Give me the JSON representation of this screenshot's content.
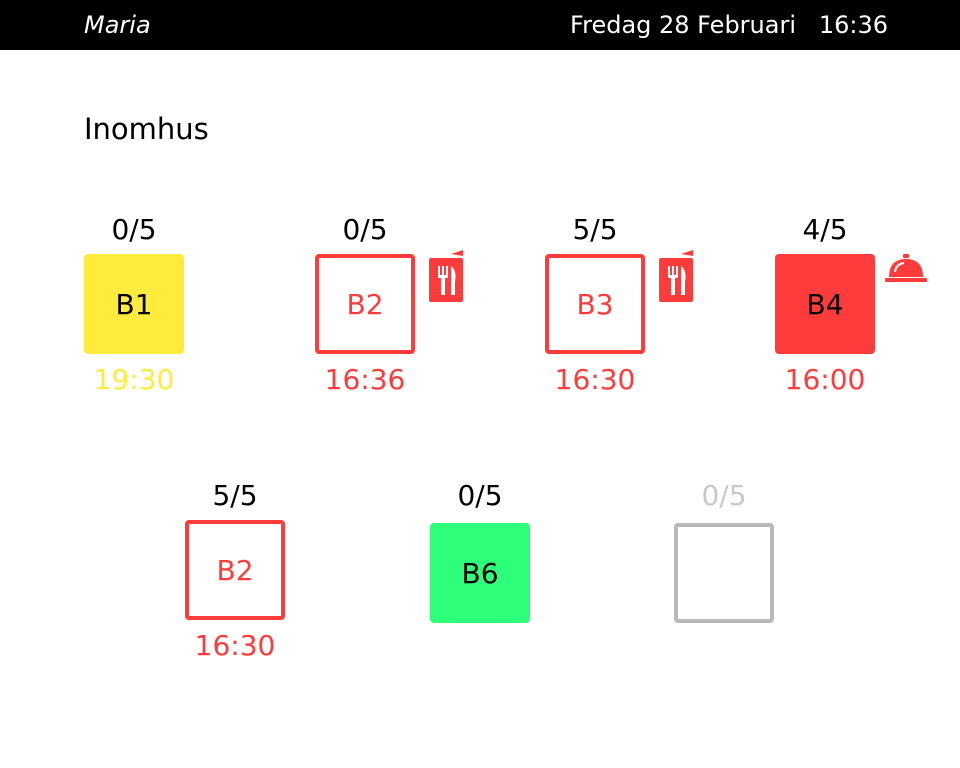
{
  "header": {
    "user": "Maria",
    "date": "Fredag 28 Februari",
    "time": "16:36",
    "colors": {
      "background": "#000000",
      "text": "#ffffff"
    }
  },
  "section": {
    "title": "Inomhus"
  },
  "colors": {
    "occupied_red": "#ff3b3b",
    "reserved_yellow": "#ffeb3b",
    "free_green": "#2eff7b",
    "inactive_grey": "#b8b8b8"
  },
  "tables": [
    {
      "id": "t1",
      "label": "B1",
      "count": "0/5",
      "time": "19:30",
      "style": "yellow",
      "icon": null
    },
    {
      "id": "t2",
      "label": "B2",
      "count": "0/5",
      "time": "16:36",
      "style": "red-outline",
      "icon": "menu-icon"
    },
    {
      "id": "t3",
      "label": "B3",
      "count": "5/5",
      "time": "16:30",
      "style": "red-outline",
      "icon": "menu-icon"
    },
    {
      "id": "t4",
      "label": "B4",
      "count": "4/5",
      "time": "16:00",
      "style": "red-fill",
      "icon": "service-bell-icon"
    },
    {
      "id": "t5",
      "label": "B2",
      "count": "5/5",
      "time": "16:30",
      "style": "red-outline",
      "icon": null
    },
    {
      "id": "t6",
      "label": "B6",
      "count": "0/5",
      "time": "",
      "style": "green",
      "icon": null
    },
    {
      "id": "t7",
      "label": "",
      "count": "0/5",
      "time": "",
      "style": "grey-outline",
      "icon": null
    }
  ]
}
